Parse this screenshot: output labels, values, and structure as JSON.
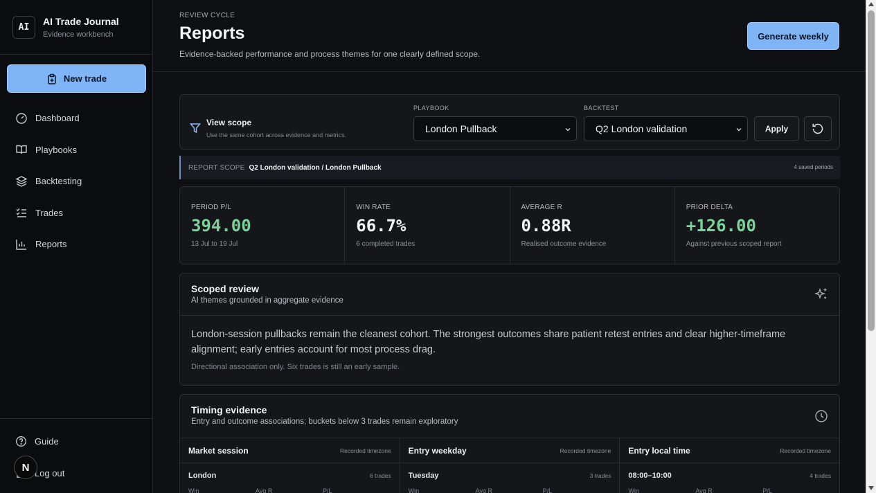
{
  "brand": {
    "logo": "AI",
    "title": "AI Trade Journal",
    "subtitle": "Evidence workbench"
  },
  "sidebar": {
    "new_trade_label": "New trade",
    "nav": [
      {
        "label": "Dashboard",
        "icon": "gauge-icon"
      },
      {
        "label": "Playbooks",
        "icon": "book-icon"
      },
      {
        "label": "Backtesting",
        "icon": "layers-icon"
      },
      {
        "label": "Trades",
        "icon": "list-checks-icon"
      },
      {
        "label": "Reports",
        "icon": "bar-chart-icon"
      }
    ],
    "guide_label": "Guide",
    "logout_label": "Log out",
    "avatar_initial": "N"
  },
  "header": {
    "eyebrow": "REVIEW CYCLE",
    "title": "Reports",
    "subtitle": "Evidence-backed performance and process themes for one clearly defined scope.",
    "generate_label": "Generate weekly"
  },
  "scope": {
    "title": "View scope",
    "subtitle": "Use the same cohort across evidence and metrics.",
    "playbook_label": "PLAYBOOK",
    "playbook_value": "London Pullback",
    "backtest_label": "BACKTEST",
    "backtest_value": "Q2 London validation",
    "apply_label": "Apply"
  },
  "report_scope": {
    "label": "REPORT SCOPE",
    "value": "Q2 London validation / London Pullback",
    "saved": "4 saved periods"
  },
  "metrics": [
    {
      "label": "PERIOD P/L",
      "value": "394.00",
      "note": "13 Jul to 19 Jul"
    },
    {
      "label": "WIN RATE",
      "value": "66.7%",
      "note": "6 completed trades"
    },
    {
      "label": "AVERAGE R",
      "value": "0.88R",
      "note": "Realised outcome evidence"
    },
    {
      "label": "PRIOR DELTA",
      "value": "+126.00",
      "note": "Against previous scoped report"
    }
  ],
  "review": {
    "title": "Scoped review",
    "subtitle": "AI themes grounded in aggregate evidence",
    "text": "London-session pullbacks remain the cleanest cohort. The strongest outcomes share patient retest entries and clear higher-timeframe alignment; early entries account for most process drag.",
    "note": "Directional association only. Six trades is still an early sample."
  },
  "timing": {
    "title": "Timing evidence",
    "subtitle": "Entry and outcome associations; buckets below 3 trades remain exploratory",
    "columns": [
      {
        "title": "Market session",
        "tz": "Recorded timezone",
        "row": "London",
        "count": "6 trades"
      },
      {
        "title": "Entry weekday",
        "tz": "Recorded timezone",
        "row": "Tuesday",
        "count": "3 trades"
      },
      {
        "title": "Entry local time",
        "tz": "Recorded timezone",
        "row": "08:00–10:00",
        "count": "4 trades"
      }
    ],
    "stat_labels": [
      "Win",
      "Avg R",
      "P/L"
    ]
  },
  "colors": {
    "accent": "#7fb4f7",
    "positive": "#7bd39a",
    "background": "#0e1013",
    "panel": "#14161a"
  }
}
